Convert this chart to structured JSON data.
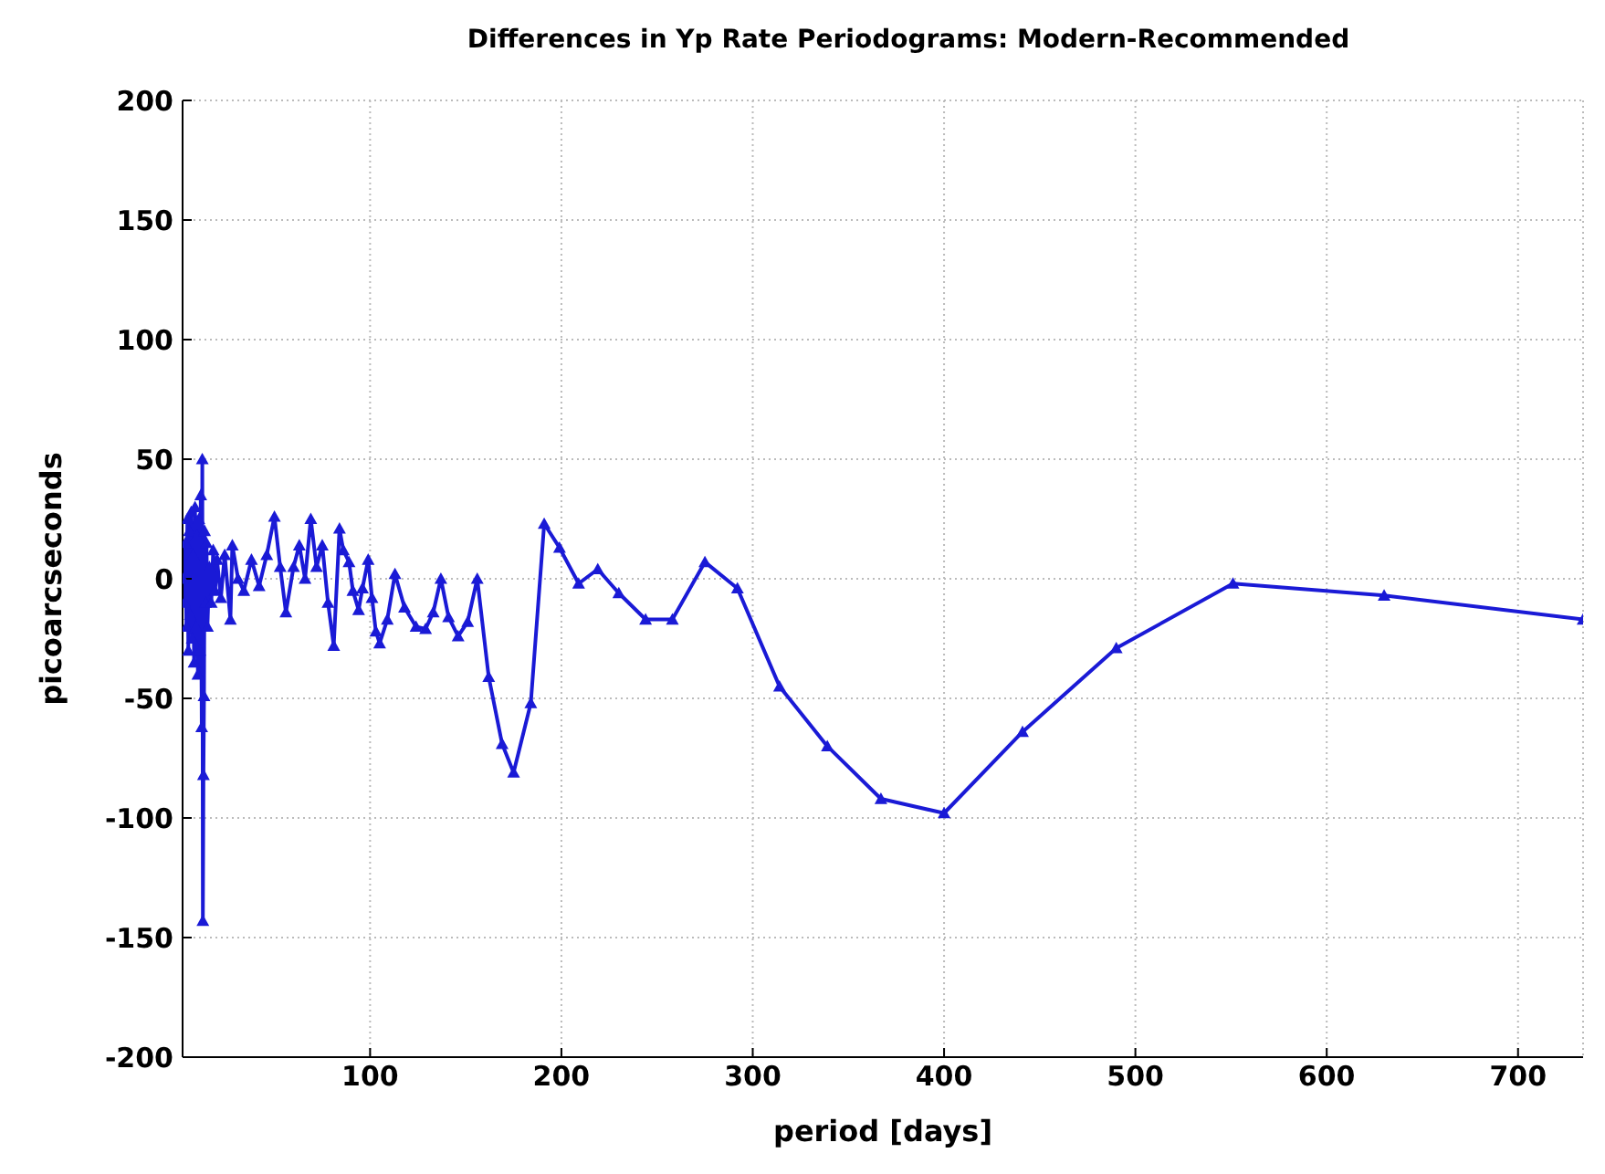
{
  "chart_data": {
    "type": "line",
    "title": "Differences in Yp Rate Periodograms: Modern-Recommended",
    "xlabel": "period [days]",
    "ylabel": "picoarcseconds",
    "x": [
      2,
      3,
      3.5,
      4,
      4.5,
      5,
      5.5,
      6,
      6.5,
      7,
      7.5,
      8,
      8.5,
      9,
      9.5,
      10,
      10.5,
      11,
      11.5,
      12,
      12.3,
      12.6,
      12.9,
      13.2,
      13.5,
      14,
      14.5,
      15,
      16,
      17,
      18,
      19,
      20,
      22,
      24,
      27,
      28,
      31,
      34,
      38,
      42,
      46,
      50,
      53,
      56,
      60,
      63,
      66,
      69,
      72,
      75,
      78,
      81,
      84,
      86,
      89,
      91,
      94,
      96,
      99,
      101,
      103,
      105,
      109,
      113,
      118,
      124,
      129,
      133,
      137,
      141,
      146,
      151,
      156,
      162,
      169,
      175,
      184,
      191,
      199,
      209,
      219,
      230,
      244,
      258,
      275,
      292,
      314,
      339,
      367,
      400,
      441,
      490,
      551,
      630,
      734
    ],
    "series": [
      {
        "color": "#1a1ad6",
        "values": [
          0,
          -10,
          15,
          -20,
          25,
          -30,
          20,
          -15,
          28,
          -25,
          10,
          -35,
          30,
          -20,
          18,
          -40,
          25,
          -30,
          35,
          -62,
          50,
          -143,
          -82,
          -49,
          20,
          -10,
          15,
          -20,
          5,
          -10,
          12,
          -5,
          8,
          -8,
          10,
          -17,
          14,
          0,
          -5,
          8,
          -3,
          10,
          26,
          5,
          -14,
          5,
          14,
          0,
          25,
          5,
          14,
          -10,
          -28,
          21,
          12,
          7,
          -5,
          -13,
          -4,
          8,
          -8,
          -22,
          -27,
          -17,
          2,
          -12,
          -20,
          -21,
          -14,
          0,
          -16,
          -24,
          -18,
          0,
          -41,
          -69,
          -81,
          -52,
          23,
          13,
          -2,
          4,
          -6,
          -17,
          -17,
          7,
          -4,
          -45,
          -70,
          -92,
          -98,
          -64,
          -29,
          -2,
          -7,
          -17
        ]
      }
    ],
    "xlim": [
      2,
      734
    ],
    "xticks": [
      100,
      200,
      300,
      400,
      500,
      600,
      700
    ],
    "ylim": [
      -200,
      200
    ],
    "yticks": [
      -200,
      -150,
      -100,
      -50,
      0,
      50,
      100,
      150,
      200
    ],
    "grid": true,
    "marker": "triangle",
    "line_style": "solid"
  }
}
